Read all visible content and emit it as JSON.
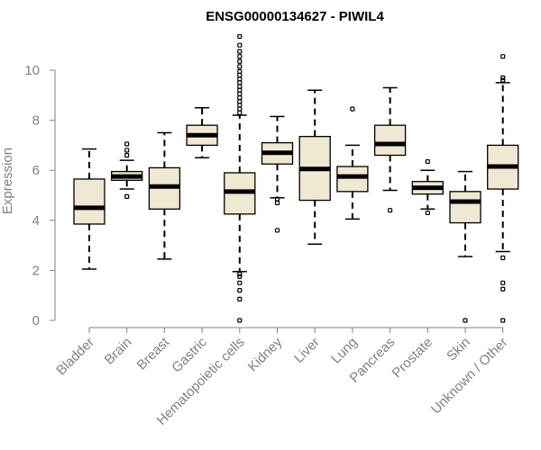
{
  "chart_data": {
    "type": "boxplot",
    "title": "ENSG00000134627 - PIWIL4",
    "xlabel": "",
    "ylabel": "Expression",
    "ylim": [
      0,
      11.5
    ],
    "yticks": [
      0,
      2,
      4,
      6,
      8,
      10
    ],
    "categories": [
      "Bladder",
      "Brain",
      "Breast",
      "Gastric",
      "Hematopoietic cells",
      "Kidney",
      "Liver",
      "Lung",
      "Pancreas",
      "Prostate",
      "Skin",
      "Unknown / Other"
    ],
    "box_color": "#efe8d2",
    "boxes": [
      {
        "name": "Bladder",
        "whisker_low": 2.05,
        "q1": 3.85,
        "median": 4.5,
        "q3": 5.65,
        "whisker_high": 6.85,
        "outliers": []
      },
      {
        "name": "Brain",
        "whisker_low": 5.25,
        "q1": 5.6,
        "median": 5.75,
        "q3": 5.95,
        "whisker_high": 6.4,
        "outliers": [
          4.95,
          6.6,
          6.8,
          7.05
        ]
      },
      {
        "name": "Breast",
        "whisker_low": 2.45,
        "q1": 4.45,
        "median": 5.35,
        "q3": 6.1,
        "whisker_high": 7.5,
        "outliers": []
      },
      {
        "name": "Gastric",
        "whisker_low": 6.5,
        "q1": 7.0,
        "median": 7.4,
        "q3": 7.8,
        "whisker_high": 8.5,
        "outliers": []
      },
      {
        "name": "Hematopoietic cells",
        "whisker_low": 1.95,
        "q1": 4.25,
        "median": 5.15,
        "q3": 5.9,
        "whisker_high": 8.2,
        "outliers": [
          0.0,
          0.85,
          1.2,
          1.5,
          1.75,
          1.85,
          8.3,
          8.45,
          8.6,
          8.75,
          8.9,
          9.05,
          9.2,
          9.35,
          9.5,
          9.65,
          9.8,
          9.95,
          10.15,
          10.35,
          10.55,
          10.75,
          11.0,
          11.35
        ]
      },
      {
        "name": "Kidney",
        "whisker_low": 4.9,
        "q1": 6.25,
        "median": 6.7,
        "q3": 7.1,
        "whisker_high": 8.15,
        "outliers": [
          3.6,
          4.7,
          4.85
        ]
      },
      {
        "name": "Liver",
        "whisker_low": 3.05,
        "q1": 4.8,
        "median": 6.05,
        "q3": 7.35,
        "whisker_high": 9.2,
        "outliers": []
      },
      {
        "name": "Lung",
        "whisker_low": 4.05,
        "q1": 5.15,
        "median": 5.75,
        "q3": 6.15,
        "whisker_high": 7.0,
        "outliers": [
          8.45
        ]
      },
      {
        "name": "Pancreas",
        "whisker_low": 5.2,
        "q1": 6.6,
        "median": 7.05,
        "q3": 7.8,
        "whisker_high": 9.3,
        "outliers": [
          4.4
        ]
      },
      {
        "name": "Prostate",
        "whisker_low": 4.45,
        "q1": 5.05,
        "median": 5.3,
        "q3": 5.55,
        "whisker_high": 6.0,
        "outliers": [
          4.3,
          6.35
        ]
      },
      {
        "name": "Skin",
        "whisker_low": 2.55,
        "q1": 3.9,
        "median": 4.75,
        "q3": 5.15,
        "whisker_high": 5.95,
        "outliers": [
          0.0
        ]
      },
      {
        "name": "Unknown / Other",
        "whisker_low": 2.75,
        "q1": 5.25,
        "median": 6.15,
        "q3": 7.0,
        "whisker_high": 9.5,
        "outliers": [
          0.0,
          1.25,
          1.5,
          2.5,
          9.6,
          9.7,
          10.55
        ]
      }
    ]
  }
}
